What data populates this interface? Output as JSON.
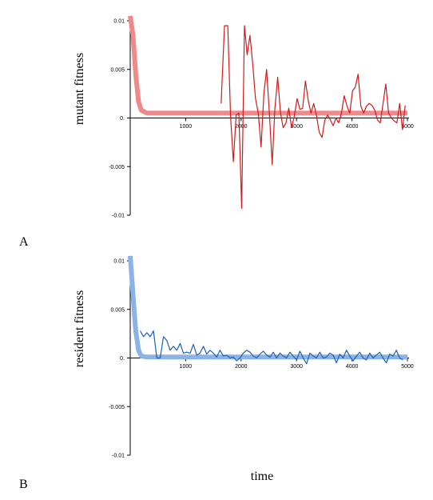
{
  "chart_data": [
    {
      "type": "line",
      "panel_label": "A",
      "ylabel": "mutant fitness",
      "xlabel": "",
      "xlim": [
        0,
        5000
      ],
      "ylim": [
        -0.01,
        0.01
      ],
      "x_ticks": [
        "1000",
        "2000",
        "3000",
        "4000",
        "5000"
      ],
      "y_ticks": [
        "0.01",
        "0.005",
        "0.",
        "-0.005",
        "-0.01"
      ],
      "colors": {
        "thick": "#f08a8a",
        "thin": "#d21a1a"
      },
      "series": [
        {
          "role": "thick-curve",
          "x": [
            0,
            50,
            100,
            150,
            200,
            300,
            400,
            600,
            1000,
            2000,
            3000,
            4000,
            5000
          ],
          "y": [
            0.0105,
            0.0085,
            0.0045,
            0.0017,
            0.0008,
            0.0005,
            0.0005,
            0.0005,
            0.0005,
            0.0005,
            0.0005,
            0.0005,
            0.0005
          ]
        },
        {
          "role": "thin-trace",
          "x": [
            1640,
            1700,
            1760,
            1810,
            1860,
            1910,
            1960,
            2010,
            2060,
            2110,
            2160,
            2210,
            2260,
            2310,
            2360,
            2410,
            2460,
            2510,
            2560,
            2610,
            2660,
            2710,
            2760,
            2810,
            2860,
            2910,
            2960,
            3010,
            3060,
            3110,
            3160,
            3210,
            3260,
            3310,
            3360,
            3410,
            3460,
            3510,
            3560,
            3610,
            3660,
            3710,
            3760,
            3810,
            3860,
            3910,
            3960,
            4010,
            4060,
            4110,
            4160,
            4210,
            4260,
            4310,
            4360,
            4410,
            4460,
            4510,
            4560,
            4610,
            4660,
            4710,
            4760,
            4810,
            4860,
            4910,
            4960
          ],
          "y": [
            0.0015,
            0.0095,
            0.0095,
            0.0002,
            -0.0045,
            0.0003,
            0.0005,
            -0.0093,
            0.0095,
            0.0065,
            0.0085,
            0.0055,
            0.002,
            0.0005,
            -0.003,
            0.0025,
            0.005,
            0.0005,
            -0.0048,
            0.001,
            0.0042,
            0.0005,
            -0.001,
            -0.0005,
            0.001,
            -0.001,
            0.0002,
            0.002,
            0.0009,
            0.001,
            0.0038,
            0.0018,
            0.0005,
            0.0015,
            0.0002,
            -0.0015,
            -0.002,
            -0.0002,
            0.0003,
            -0.0002,
            -0.0008,
            0.0,
            -0.0005,
            0.0005,
            0.0023,
            0.0012,
            0.0005,
            0.0028,
            0.0032,
            0.0045,
            0.0012,
            0.0005,
            0.0012,
            0.0015,
            0.0013,
            0.0008,
            -0.0002,
            -0.0005,
            0.0015,
            0.0035,
            0.0005,
            0.0,
            -0.0003,
            -0.0005,
            0.0015,
            -0.0012,
            0.0013
          ]
        }
      ]
    },
    {
      "type": "line",
      "panel_label": "B",
      "ylabel": "resident fitness",
      "xlabel": "time",
      "xlim": [
        0,
        5000
      ],
      "ylim": [
        -0.01,
        0.01
      ],
      "x_ticks": [
        "1000",
        "2000",
        "3000",
        "4000",
        "5000"
      ],
      "y_ticks": [
        "0.01",
        "0.005",
        "0.",
        "-0.005",
        "-0.01"
      ],
      "colors": {
        "thick": "#8ab4e6",
        "thin": "#1f5fb4"
      },
      "series": [
        {
          "role": "thick-curve",
          "x": [
            0,
            50,
            100,
            150,
            200,
            300,
            400,
            600,
            1000,
            2000,
            3000,
            4000,
            5000
          ],
          "y": [
            0.0105,
            0.0065,
            0.0028,
            0.0008,
            0.0002,
            0.0001,
            0.0001,
            0.0001,
            0.0001,
            0.0001,
            0.0001,
            0.0001,
            0.0001
          ]
        },
        {
          "role": "thin-trace",
          "x": [
            180,
            240,
            300,
            360,
            420,
            480,
            540,
            600,
            660,
            720,
            780,
            840,
            900,
            960,
            1020,
            1080,
            1140,
            1200,
            1260,
            1320,
            1380,
            1440,
            1500,
            1560,
            1620,
            1680,
            1740,
            1800,
            1860,
            1920,
            1980,
            2040,
            2100,
            2160,
            2220,
            2280,
            2340,
            2400,
            2460,
            2520,
            2580,
            2640,
            2700,
            2760,
            2820,
            2880,
            2940,
            3000,
            3060,
            3120,
            3180,
            3240,
            3300,
            3360,
            3420,
            3480,
            3540,
            3600,
            3660,
            3720,
            3780,
            3840,
            3900,
            3960,
            4020,
            4080,
            4140,
            4200,
            4260,
            4320,
            4380,
            4440,
            4500,
            4560,
            4620,
            4680,
            4740,
            4800,
            4860,
            4920
          ],
          "y": [
            0.0028,
            0.0022,
            0.0026,
            0.0022,
            0.0028,
            0.0,
            0.0,
            0.0022,
            0.0018,
            0.0008,
            0.0012,
            0.0008,
            0.0015,
            0.0005,
            0.0006,
            0.0005,
            0.0014,
            0.0003,
            0.0005,
            0.0012,
            0.0004,
            0.0008,
            0.0005,
            0.0001,
            0.0008,
            0.0002,
            0.0003,
            0.0,
            0.0001,
            -0.0003,
            0.0,
            0.0005,
            0.0008,
            0.0006,
            0.0002,
            0.0,
            0.0004,
            0.0007,
            0.0003,
            0.0001,
            0.0006,
            0.0,
            0.0005,
            0.0002,
            0.0,
            0.0006,
            0.0002,
            -0.0002,
            0.0007,
            0.0,
            -0.0006,
            0.0005,
            0.0002,
            0.0,
            0.0006,
            0.0,
            0.0001,
            0.0005,
            0.0003,
            -0.0005,
            0.0004,
            0.0,
            0.0008,
            0.0002,
            -0.0003,
            0.0002,
            0.0006,
            0.0,
            -0.0002,
            0.0005,
            0.0,
            0.0003,
            0.0006,
            0.0,
            -0.0005,
            0.0004,
            0.0002,
            0.0008,
            0.0,
            -0.0002
          ]
        }
      ]
    }
  ]
}
